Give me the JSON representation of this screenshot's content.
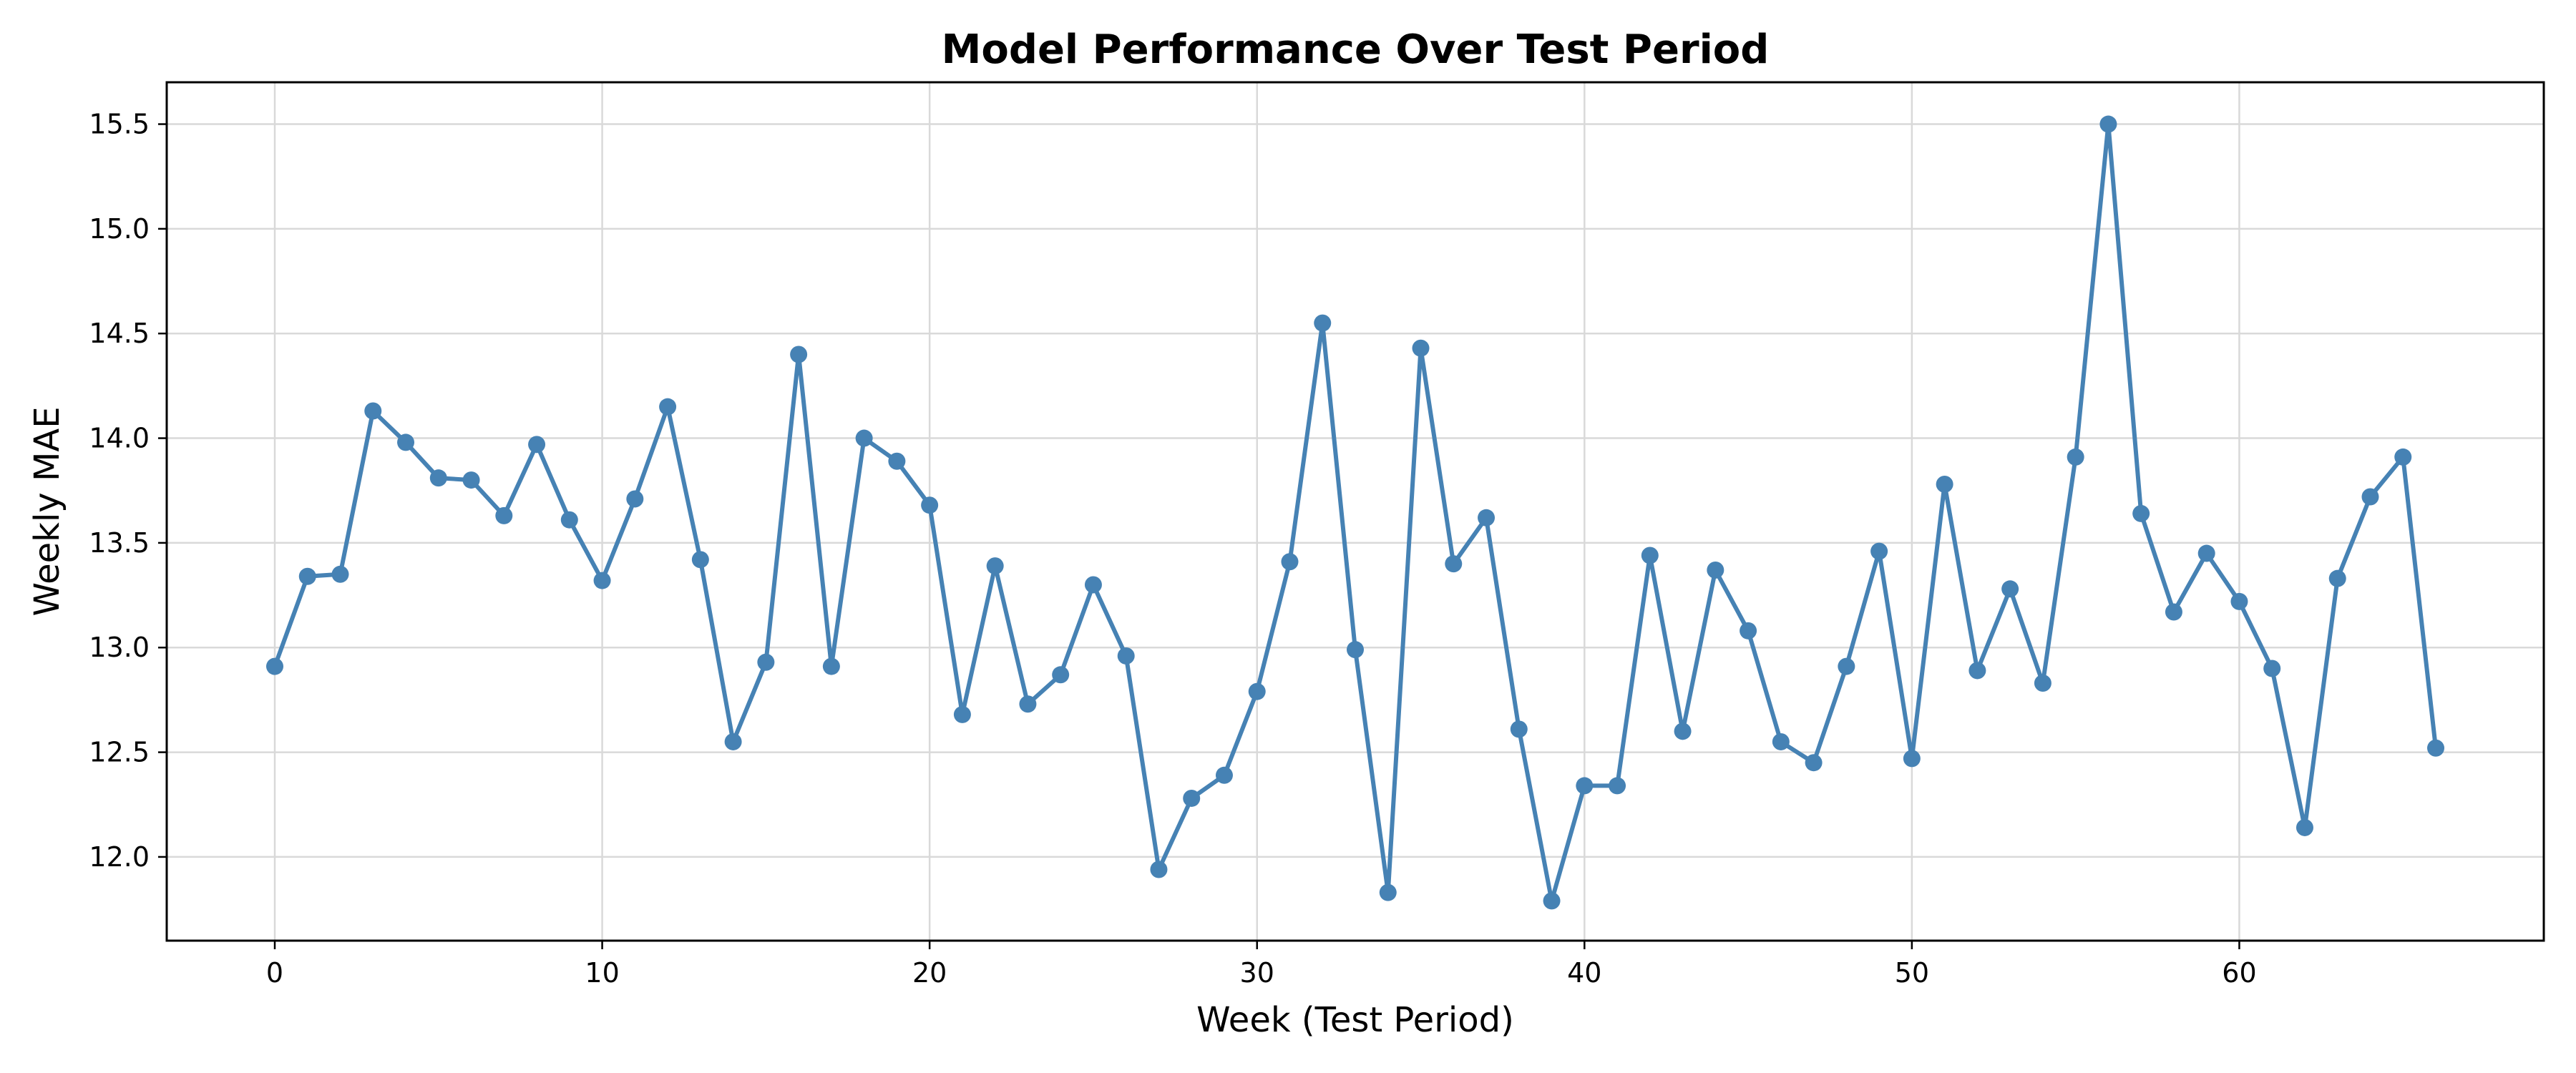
{
  "chart_data": {
    "type": "line",
    "title": "Model Performance Over Test Period",
    "xlabel": "Week (Test Period)",
    "ylabel": "Weekly MAE",
    "xlim": [
      -3.3,
      69.3
    ],
    "ylim": [
      11.6,
      15.7
    ],
    "xticks": [
      0,
      10,
      20,
      30,
      40,
      50,
      60
    ],
    "yticks": [
      12.0,
      12.5,
      13.0,
      13.5,
      14.0,
      14.5,
      15.0,
      15.5
    ],
    "grid": true,
    "legend": "none",
    "color": "#4682b4",
    "series": [
      {
        "x": [
          0,
          1,
          2,
          3,
          4,
          5,
          6,
          7,
          8,
          9,
          10,
          11,
          12,
          13,
          14,
          15,
          16,
          17,
          18,
          19,
          20,
          21,
          22,
          23,
          24,
          25,
          26,
          27,
          28,
          29,
          30,
          31,
          32,
          33,
          34,
          35,
          36,
          37,
          38,
          39,
          40,
          41,
          42,
          43,
          44,
          45,
          46,
          47,
          48,
          49,
          50,
          51,
          52,
          53,
          54,
          55,
          56,
          57,
          58,
          59,
          60,
          61,
          62,
          63,
          64,
          65,
          66
        ],
        "values": [
          12.91,
          13.34,
          13.35,
          14.13,
          13.98,
          13.81,
          13.8,
          13.63,
          13.97,
          13.61,
          13.32,
          13.71,
          14.15,
          13.42,
          12.55,
          12.93,
          14.4,
          12.91,
          14.0,
          13.89,
          13.68,
          12.68,
          13.39,
          12.73,
          12.87,
          13.3,
          12.96,
          11.94,
          12.28,
          12.39,
          12.79,
          13.41,
          14.55,
          12.99,
          11.83,
          14.43,
          13.4,
          13.62,
          12.61,
          11.79,
          12.34,
          12.34,
          13.44,
          12.6,
          13.37,
          13.08,
          12.55,
          12.45,
          12.91,
          13.46,
          12.47,
          13.78,
          12.89,
          13.28,
          12.83,
          13.91,
          15.5,
          13.64,
          13.17,
          13.45,
          13.22,
          12.9,
          12.14,
          13.33,
          13.72,
          13.91,
          12.52
        ]
      }
    ]
  }
}
